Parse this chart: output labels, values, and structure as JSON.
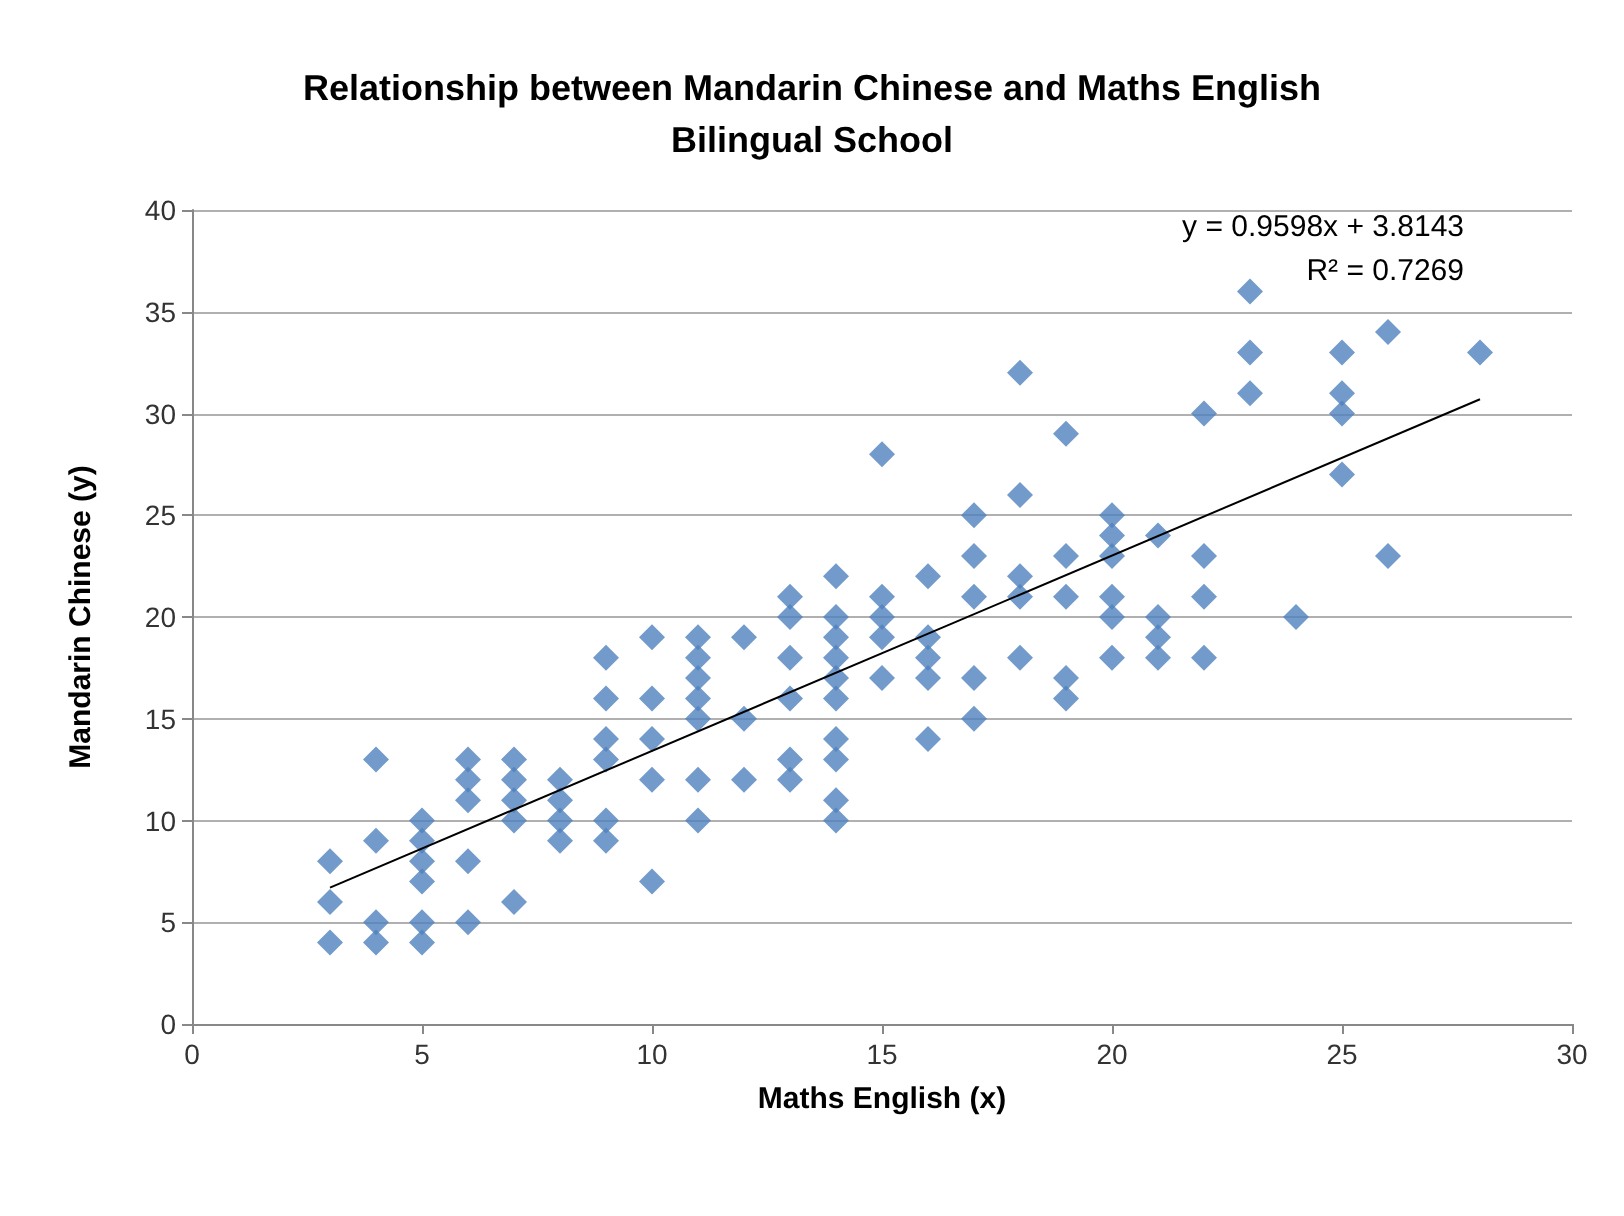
{
  "chart_data": {
    "type": "scatter",
    "title": "Relationship between Mandarin Chinese and Maths English\nBilingual School",
    "xlabel": "Maths English (x)",
    "ylabel": "Mandarin Chinese (y)",
    "xlim": [
      0,
      30
    ],
    "xticks": [
      0,
      5,
      10,
      15,
      20,
      25,
      30
    ],
    "ylim": [
      0,
      40
    ],
    "yticks": [
      0,
      5,
      10,
      15,
      20,
      25,
      30,
      35,
      40
    ],
    "grid": "y",
    "marker": "diamond",
    "annotations": [
      "y = 0.9598x + 3.8143",
      "R² = 0.7269"
    ],
    "series": [
      {
        "color": "#4f81bd",
        "x": [
          3,
          3,
          3,
          4,
          4,
          4,
          4,
          5,
          5,
          5,
          5,
          5,
          5,
          6,
          6,
          6,
          6,
          6,
          7,
          7,
          7,
          7,
          7,
          8,
          8,
          8,
          8,
          9,
          9,
          9,
          9,
          9,
          9,
          10,
          10,
          10,
          10,
          10,
          11,
          11,
          11,
          11,
          11,
          11,
          11,
          12,
          12,
          12,
          13,
          13,
          13,
          13,
          13,
          13,
          14,
          14,
          14,
          14,
          14,
          14,
          14,
          14,
          14,
          14,
          15,
          15,
          15,
          15,
          15,
          16,
          16,
          16,
          16,
          16,
          17,
          17,
          17,
          17,
          17,
          18,
          18,
          18,
          18,
          18,
          19,
          19,
          19,
          19,
          19,
          20,
          20,
          20,
          20,
          20,
          20,
          21,
          21,
          21,
          21,
          22,
          22,
          22,
          22,
          23,
          23,
          23,
          24,
          25,
          25,
          25,
          25,
          26,
          26,
          28
        ],
        "values": [
          8,
          6,
          4,
          13,
          9,
          5,
          4,
          10,
          9,
          8,
          7,
          5,
          4,
          13,
          12,
          11,
          8,
          5,
          13,
          12,
          11,
          10,
          6,
          12,
          11,
          10,
          9,
          18,
          16,
          14,
          13,
          10,
          9,
          19,
          16,
          14,
          12,
          7,
          19,
          18,
          17,
          16,
          15,
          12,
          10,
          19,
          15,
          12,
          21,
          20,
          18,
          16,
          13,
          12,
          22,
          20,
          19,
          18,
          17,
          16,
          14,
          13,
          11,
          10,
          28,
          21,
          20,
          19,
          17,
          22,
          19,
          18,
          17,
          14,
          25,
          23,
          21,
          17,
          15,
          32,
          26,
          22,
          21,
          18,
          29,
          23,
          21,
          17,
          16,
          25,
          24,
          23,
          21,
          20,
          18,
          24,
          20,
          19,
          18,
          30,
          23,
          21,
          18,
          36,
          33,
          31,
          20,
          33,
          31,
          30,
          27,
          34,
          23,
          33
        ]
      },
      {
        "type": "line",
        "color": "#000000",
        "x": [
          3,
          28
        ],
        "values": [
          6.7,
          30.7
        ],
        "marker": "none"
      }
    ]
  }
}
